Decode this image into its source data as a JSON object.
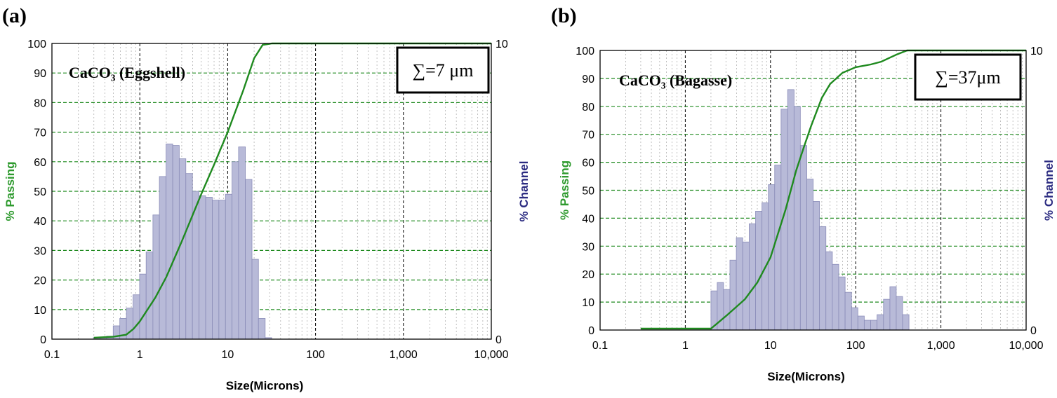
{
  "chart_data": [
    {
      "type": "bar+line",
      "panel_label": "(a)",
      "sample_label": "CaCO₃ (Eggshell)",
      "annotation": "∑=7 μm",
      "xlabel": "Size(Microns)",
      "ylabel_left": "% Passing",
      "ylabel_right": "% Channel",
      "x_scale": "log",
      "xlim": [
        0.1,
        10000
      ],
      "x_ticks": [
        "0.1",
        "1",
        "10",
        "100",
        "1,000",
        "10,000"
      ],
      "x_tick_values": [
        0.1,
        1,
        10,
        100,
        1000,
        10000
      ],
      "ylim_left": [
        0,
        100
      ],
      "y_ticks_left": [
        "0",
        "10",
        "20",
        "30",
        "40",
        "50",
        "60",
        "70",
        "80",
        "90",
        "100"
      ],
      "ylim_right": [
        0,
        10
      ],
      "y_ticks_right": [
        "0",
        "10"
      ],
      "series": [
        {
          "name": "% Channel",
          "type": "bar",
          "color": "#b8bad8",
          "bin_edges": [
            0.296,
            0.352,
            0.419,
            0.498,
            0.592,
            0.704,
            0.837,
            0.995,
            1.18,
            1.41,
            1.67,
            1.99,
            2.37,
            2.81,
            3.34,
            3.97,
            4.72,
            5.62,
            6.68,
            7.94,
            9.44,
            11.2,
            13.3,
            15.9,
            18.9,
            22.4,
            26.7,
            31.7
          ],
          "values": [
            0.05,
            0.05,
            0.1,
            0.45,
            0.7,
            1.05,
            1.5,
            2.2,
            2.95,
            4.2,
            5.5,
            6.6,
            6.55,
            6.1,
            5.6,
            5.0,
            4.85,
            4.8,
            4.7,
            4.7,
            4.9,
            6.0,
            6.5,
            5.4,
            2.7,
            0.7,
            0.05
          ]
        },
        {
          "name": "% Passing",
          "type": "line",
          "color": "#1f8a1f",
          "x": [
            0.3,
            0.5,
            0.7,
            0.85,
            1.0,
            1.5,
            2.0,
            3.0,
            5.0,
            7.0,
            10.0,
            15.0,
            20.0,
            25.0,
            32.0,
            10000
          ],
          "y": [
            0.5,
            0.8,
            1.5,
            3.5,
            6,
            14,
            21,
            33,
            49,
            59,
            70,
            84,
            95,
            99.5,
            100,
            100
          ]
        }
      ]
    },
    {
      "type": "bar+line",
      "panel_label": "(b)",
      "sample_label": "CaCO₃ (Bagasse)",
      "annotation": "∑=37μm",
      "xlabel": "Size(Microns)",
      "ylabel_left": "% Passing",
      "ylabel_right": "% Channel",
      "x_scale": "log",
      "xlim": [
        0.1,
        10000
      ],
      "x_ticks": [
        "0.1",
        "1",
        "10",
        "100",
        "1,000",
        "10,000"
      ],
      "x_tick_values": [
        0.1,
        1,
        10,
        100,
        1000,
        10000
      ],
      "ylim_left": [
        0,
        100
      ],
      "y_ticks_left": [
        "0",
        "10",
        "20",
        "30",
        "40",
        "50",
        "60",
        "70",
        "80",
        "90",
        "100"
      ],
      "ylim_right": [
        0,
        10
      ],
      "y_ticks_right": [
        "0",
        "10"
      ],
      "series": [
        {
          "name": "% Channel",
          "type": "bar",
          "color": "#b8bad8",
          "bin_edges": [
            2.0,
            2.37,
            2.81,
            3.34,
            3.97,
            4.72,
            5.62,
            6.68,
            7.94,
            9.44,
            11.2,
            13.3,
            15.9,
            18.9,
            22.4,
            26.7,
            31.7,
            37.6,
            44.7,
            53.2,
            63.2,
            75.1,
            89.3,
            106,
            126,
            150,
            178,
            212,
            252,
            299,
            355,
            422
          ],
          "values": [
            1.4,
            1.7,
            1.45,
            2.5,
            3.3,
            3.15,
            3.8,
            4.25,
            4.55,
            5.2,
            5.9,
            7.9,
            8.6,
            8.0,
            6.6,
            5.4,
            4.6,
            3.7,
            2.8,
            2.35,
            1.9,
            1.35,
            0.8,
            0.5,
            0.35,
            0.35,
            0.55,
            1.1,
            1.55,
            1.2,
            0.55
          ]
        },
        {
          "name": "% Passing",
          "type": "line",
          "color": "#1f8a1f",
          "x": [
            0.3,
            1.0,
            2.0,
            3.0,
            5.0,
            7.0,
            10.0,
            15.0,
            20.0,
            25.0,
            30.0,
            40.0,
            50.0,
            70.0,
            100.0,
            150.0,
            200.0,
            300.0,
            400.0,
            10000
          ],
          "y": [
            0.5,
            0.5,
            0.5,
            5,
            11,
            17,
            26,
            43,
            57,
            66,
            73,
            83,
            88,
            92,
            94,
            95,
            96,
            98.5,
            100,
            100
          ]
        }
      ]
    }
  ]
}
